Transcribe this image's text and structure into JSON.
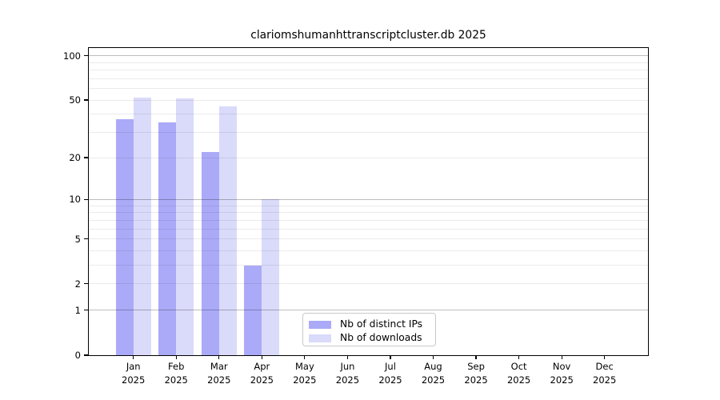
{
  "figure": {
    "title": "clariomshumanhttranscriptcluster.db 2025"
  },
  "chart_data": {
    "type": "bar",
    "title": "clariomshumanhttranscriptcluster.db 2025",
    "categories": [
      "Jan 2025",
      "Feb 2025",
      "Mar 2025",
      "Apr 2025",
      "May 2025",
      "Jun 2025",
      "Jul 2025",
      "Aug 2025",
      "Sep 2025",
      "Oct 2025",
      "Nov 2025",
      "Dec 2025"
    ],
    "x_axis": {
      "tick_labels": [
        {
          "line1": "Jan",
          "line2": "2025"
        },
        {
          "line1": "Feb",
          "line2": "2025"
        },
        {
          "line1": "Mar",
          "line2": "2025"
        },
        {
          "line1": "Apr",
          "line2": "2025"
        },
        {
          "line1": "May",
          "line2": "2025"
        },
        {
          "line1": "Jun",
          "line2": "2025"
        },
        {
          "line1": "Jul",
          "line2": "2025"
        },
        {
          "line1": "Aug",
          "line2": "2025"
        },
        {
          "line1": "Sep",
          "line2": "2025"
        },
        {
          "line1": "Oct",
          "line2": "2025"
        },
        {
          "line1": "Nov",
          "line2": "2025"
        },
        {
          "line1": "Dec",
          "line2": "2025"
        }
      ]
    },
    "series": [
      {
        "name": "Nb of distinct IPs",
        "color": "#aaaaf8",
        "values": [
          37,
          35,
          22,
          3,
          0,
          0,
          0,
          0,
          0,
          0,
          0,
          0
        ]
      },
      {
        "name": "Nb of downloads",
        "color": "#dadafa",
        "values": [
          52,
          51,
          45,
          10,
          0,
          0,
          0,
          0,
          0,
          0,
          0,
          0
        ]
      }
    ],
    "y_axis": {
      "scale": "log1p",
      "tick_values": [
        0,
        1,
        2,
        5,
        10,
        20,
        50,
        100
      ],
      "tick_labels": [
        "0",
        "1",
        "2",
        "5",
        "10",
        "20",
        "50",
        "100"
      ],
      "major_gridlines": [
        1,
        10,
        100
      ],
      "minor_gridlines": [
        2,
        3,
        4,
        5,
        6,
        7,
        8,
        9,
        20,
        30,
        40,
        50,
        60,
        70,
        80,
        90
      ],
      "max": 100
    },
    "legend": {
      "position": "lower center inside",
      "entries": [
        "Nb of distinct IPs",
        "Nb of downloads"
      ]
    },
    "grid": true
  }
}
